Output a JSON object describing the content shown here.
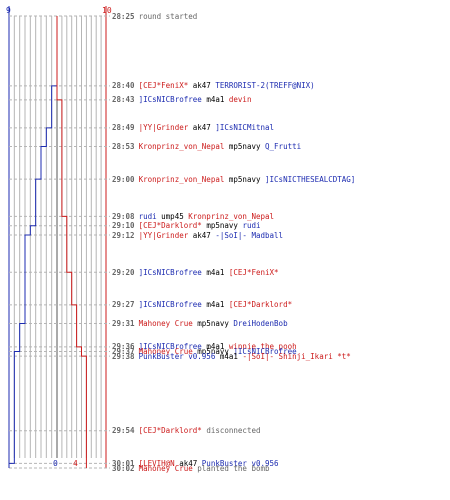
{
  "colors": {
    "ct": "#1c2bb0",
    "t": "#cc1b1b",
    "text": "#000000",
    "meta": "#666666",
    "grid": "#b5b5b5",
    "center": "#555555"
  },
  "axis": {
    "ct_top": 9,
    "t_top": 10,
    "ct_bottom": 0,
    "t_bottom": 4
  },
  "events": [
    {
      "time": "28:25",
      "parts": [
        {
          "text": "round started",
          "c": "meta"
        }
      ]
    },
    {
      "time": "28:40",
      "parts": [
        {
          "text": "[CEJ*FeniX*",
          "c": "t"
        },
        {
          "text": "ak47",
          "c": "text"
        },
        {
          "text": "TERRORIST-2(TREFF@NIX)",
          "c": "ct"
        }
      ]
    },
    {
      "time": "28:43",
      "parts": [
        {
          "text": "]ICsNICBrofree",
          "c": "ct"
        },
        {
          "text": "m4a1",
          "c": "text"
        },
        {
          "text": "devin",
          "c": "t"
        }
      ]
    },
    {
      "time": "28:49",
      "parts": [
        {
          "text": "|YY|Grinder",
          "c": "t"
        },
        {
          "text": "ak47",
          "c": "text"
        },
        {
          "text": "]ICsNICMitnal",
          "c": "ct"
        }
      ]
    },
    {
      "time": "28:53",
      "parts": [
        {
          "text": "Kronprinz_von_Nepal",
          "c": "t"
        },
        {
          "text": "mp5navy",
          "c": "text"
        },
        {
          "text": "Q_Frutti",
          "c": "ct"
        }
      ]
    },
    {
      "time": "29:00",
      "parts": [
        {
          "text": "Kronprinz_von_Nepal",
          "c": "t"
        },
        {
          "text": "mp5navy",
          "c": "text"
        },
        {
          "text": "]ICsNICTHESEALCDTAG]",
          "c": "ct"
        }
      ]
    },
    {
      "time": "29:08",
      "parts": [
        {
          "text": "rudi",
          "c": "ct"
        },
        {
          "text": "ump45",
          "c": "text"
        },
        {
          "text": "Kronprinz_von_Nepal",
          "c": "t"
        }
      ]
    },
    {
      "time": "29:10",
      "parts": [
        {
          "text": "[CEJ*Darklord*",
          "c": "t"
        },
        {
          "text": "mp5navy",
          "c": "text"
        },
        {
          "text": "rudi",
          "c": "ct"
        }
      ]
    },
    {
      "time": "29:12",
      "parts": [
        {
          "text": "|YY|Grinder",
          "c": "t"
        },
        {
          "text": "ak47",
          "c": "text"
        },
        {
          "text": "-|SoI|- Madball",
          "c": "ct"
        }
      ]
    },
    {
      "time": "29:20",
      "parts": [
        {
          "text": "]ICsNICBrofree",
          "c": "ct"
        },
        {
          "text": "m4a1",
          "c": "text"
        },
        {
          "text": "[CEJ*FeniX*",
          "c": "t"
        }
      ]
    },
    {
      "time": "29:27",
      "parts": [
        {
          "text": "]ICsNICBrofree",
          "c": "ct"
        },
        {
          "text": "m4a1",
          "c": "text"
        },
        {
          "text": "[CEJ*Darklord*",
          "c": "t"
        }
      ]
    },
    {
      "time": "29:31",
      "parts": [
        {
          "text": "Mahoney Crue",
          "c": "t"
        },
        {
          "text": "mp5navy",
          "c": "text"
        },
        {
          "text": "DreiHodenBob",
          "c": "ct"
        }
      ]
    },
    {
      "time": "29:36",
      "parts": [
        {
          "text": "]ICsNICBrofree",
          "c": "ct"
        },
        {
          "text": "m4a1",
          "c": "text"
        },
        {
          "text": "winnie the pooh",
          "c": "t"
        }
      ]
    },
    {
      "time": "29:37",
      "parts": [
        {
          "text": "Mahoney Crue",
          "c": "t"
        },
        {
          "text": "mp5navy",
          "c": "text"
        },
        {
          "text": "]ICsNICBrofree",
          "c": "ct"
        }
      ]
    },
    {
      "time": "29:38",
      "parts": [
        {
          "text": "PunkBuster v0.956",
          "c": "ct"
        },
        {
          "text": "m4a1",
          "c": "text"
        },
        {
          "text": "-|SoI|- Shinji_Ikari *t*",
          "c": "t"
        }
      ]
    },
    {
      "time": "29:54",
      "parts": [
        {
          "text": "[CEJ*Darklord*",
          "c": "t"
        },
        {
          "text": "disconnected",
          "c": "meta"
        }
      ]
    },
    {
      "time": "30:01",
      "parts": [
        {
          "text": "[LEVIH@N",
          "c": "t"
        },
        {
          "text": "ak47",
          "c": "text"
        },
        {
          "text": "PunkBuster v0.956",
          "c": "ct"
        }
      ]
    },
    {
      "time": "30:02",
      "parts": [
        {
          "text": "Mahoney Crue",
          "c": "t"
        },
        {
          "text": "planted the bomb",
          "c": "meta"
        }
      ]
    }
  ],
  "ct_steps": [
    {
      "time": "28:25",
      "alive": 9
    },
    {
      "time": "28:40",
      "alive": 8
    },
    {
      "time": "28:49",
      "alive": 7
    },
    {
      "time": "28:53",
      "alive": 6
    },
    {
      "time": "29:00",
      "alive": 5
    },
    {
      "time": "29:10",
      "alive": 4
    },
    {
      "time": "29:12",
      "alive": 3
    },
    {
      "time": "29:31",
      "alive": 2
    },
    {
      "time": "29:37",
      "alive": 1
    },
    {
      "time": "30:01",
      "alive": 0
    }
  ],
  "t_steps": [
    {
      "time": "28:25",
      "alive": 10
    },
    {
      "time": "28:43",
      "alive": 9
    },
    {
      "time": "29:08",
      "alive": 8
    },
    {
      "time": "29:20",
      "alive": 7
    },
    {
      "time": "29:27",
      "alive": 6
    },
    {
      "time": "29:36",
      "alive": 5
    },
    {
      "time": "29:38",
      "alive": 4
    }
  ]
}
